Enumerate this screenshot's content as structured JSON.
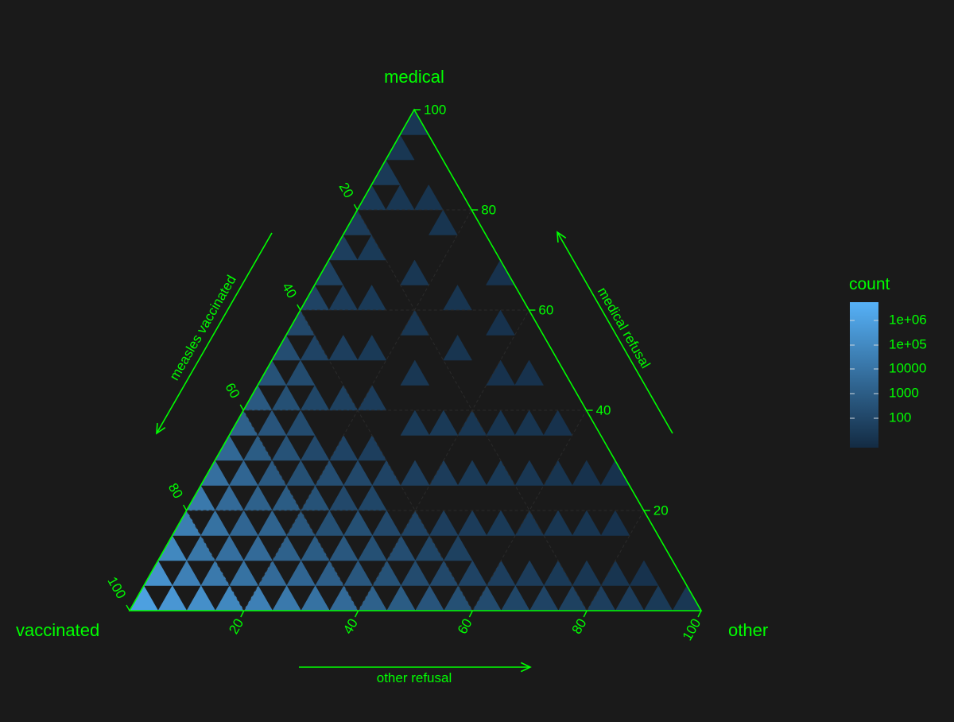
{
  "chart_data": {
    "type": "ternary-heatmap",
    "vertices": {
      "top": "medical",
      "left": "vaccinated",
      "right": "other"
    },
    "axes": [
      {
        "key": "medical",
        "title": "medical refusal",
        "ticks": [
          "20",
          "40",
          "60",
          "80",
          "100"
        ]
      },
      {
        "key": "vaccinated",
        "title": "measles vaccinated",
        "ticks": [
          "20",
          "40",
          "60",
          "80",
          "100"
        ]
      },
      {
        "key": "other",
        "title": "other refusal",
        "ticks": [
          "20",
          "40",
          "60",
          "80",
          "100"
        ]
      }
    ],
    "legend": {
      "title": "count",
      "labels": [
        "1e+06",
        "1e+05",
        "10000",
        "1000",
        "100"
      ],
      "scale": "log10",
      "color_low": "#132b43",
      "color_high": "#56b1f7"
    },
    "cell_size": 5,
    "cells": [
      [
        0,
        0,
        5.8
      ],
      [
        0,
        1,
        5.2
      ],
      [
        1,
        0,
        5.4
      ],
      [
        0,
        2,
        4.8
      ],
      [
        1,
        1,
        4.5
      ],
      [
        2,
        0,
        5.1
      ],
      [
        0,
        3,
        4.4
      ],
      [
        1,
        2,
        4.1
      ],
      [
        2,
        1,
        4.2
      ],
      [
        3,
        0,
        4.8
      ],
      [
        0,
        4,
        4.2
      ],
      [
        1,
        3,
        3.9
      ],
      [
        2,
        2,
        3.8
      ],
      [
        3,
        1,
        3.9
      ],
      [
        4,
        0,
        4.5
      ],
      [
        0,
        5,
        3.8
      ],
      [
        1,
        4,
        3.6
      ],
      [
        2,
        3,
        3.4
      ],
      [
        3,
        2,
        3.6
      ],
      [
        4,
        1,
        3.6
      ],
      [
        5,
        0,
        4.2
      ],
      [
        0,
        6,
        3.5
      ],
      [
        1,
        5,
        3.4
      ],
      [
        2,
        4,
        3.2
      ],
      [
        3,
        3,
        3.3
      ],
      [
        4,
        2,
        3.2
      ],
      [
        5,
        1,
        3.4
      ],
      [
        6,
        0,
        3.9
      ],
      [
        0,
        7,
        3.2
      ],
      [
        1,
        6,
        3.0
      ],
      [
        2,
        5,
        2.9
      ],
      [
        3,
        4,
        3.0
      ],
      [
        4,
        3,
        2.8
      ],
      [
        5,
        2,
        3.0
      ],
      [
        6,
        1,
        3.1
      ],
      [
        7,
        0,
        3.6
      ],
      [
        0,
        8,
        2.9
      ],
      [
        1,
        7,
        2.7
      ],
      [
        2,
        6,
        2.6
      ],
      [
        3,
        5,
        2.5
      ],
      [
        4,
        4,
        2.6
      ],
      [
        5,
        3,
        2.5
      ],
      [
        6,
        2,
        2.8
      ],
      [
        7,
        1,
        2.8
      ],
      [
        8,
        0,
        3.2
      ],
      [
        0,
        9,
        2.6
      ],
      [
        1,
        8,
        2.5
      ],
      [
        2,
        7,
        2.3
      ],
      [
        3,
        6,
        2.2
      ],
      [
        4,
        5,
        2.4
      ],
      [
        5,
        4,
        2.2
      ],
      [
        6,
        3,
        2.5
      ],
      [
        7,
        2,
        2.5
      ],
      [
        8,
        1,
        2.6
      ],
      [
        9,
        0,
        3.0
      ],
      [
        0,
        10,
        2.4
      ],
      [
        1,
        9,
        2.3
      ],
      [
        2,
        8,
        2.1
      ],
      [
        4,
        6,
        2.0
      ],
      [
        5,
        5,
        2.2
      ],
      [
        6,
        4,
        2.1
      ],
      [
        7,
        3,
        2.2
      ],
      [
        8,
        2,
        2.4
      ],
      [
        9,
        1,
        2.3
      ],
      [
        10,
        0,
        2.7
      ],
      [
        0,
        11,
        2.2
      ],
      [
        1,
        10,
        2.0
      ],
      [
        3,
        8,
        1.9
      ],
      [
        5,
        6,
        1.8
      ],
      [
        6,
        5,
        2.0
      ],
      [
        8,
        3,
        2.0
      ],
      [
        9,
        2,
        2.1
      ],
      [
        10,
        1,
        2.2
      ],
      [
        11,
        0,
        2.5
      ],
      [
        0,
        12,
        2.0
      ],
      [
        2,
        10,
        1.8
      ],
      [
        4,
        8,
        1.7
      ],
      [
        7,
        5,
        1.8
      ],
      [
        9,
        3,
        1.8
      ],
      [
        10,
        2,
        1.9
      ],
      [
        11,
        1,
        2.0
      ],
      [
        12,
        0,
        2.3
      ],
      [
        0,
        13,
        1.9
      ],
      [
        1,
        12,
        1.7
      ],
      [
        3,
        10,
        1.6
      ],
      [
        6,
        7,
        1.6
      ],
      [
        8,
        5,
        1.7
      ],
      [
        10,
        3,
        1.7
      ],
      [
        12,
        1,
        1.8
      ],
      [
        13,
        0,
        2.1
      ],
      [
        0,
        14,
        1.8
      ],
      [
        2,
        12,
        1.6
      ],
      [
        5,
        9,
        1.5
      ],
      [
        7,
        7,
        1.6
      ],
      [
        9,
        5,
        1.6
      ],
      [
        11,
        3,
        1.6
      ],
      [
        13,
        1,
        1.7
      ],
      [
        14,
        0,
        2.0
      ],
      [
        0,
        15,
        1.7
      ],
      [
        1,
        14,
        1.6
      ],
      [
        4,
        11,
        1.5
      ],
      [
        8,
        7,
        1.5
      ],
      [
        10,
        5,
        1.6
      ],
      [
        12,
        3,
        1.5
      ],
      [
        14,
        1,
        1.6
      ],
      [
        15,
        0,
        1.9
      ],
      [
        0,
        16,
        1.6
      ],
      [
        3,
        13,
        1.5
      ],
      [
        6,
        10,
        1.4
      ],
      [
        9,
        7,
        1.4
      ],
      [
        11,
        5,
        1.5
      ],
      [
        13,
        3,
        1.5
      ],
      [
        15,
        1,
        1.5
      ],
      [
        16,
        0,
        1.8
      ],
      [
        0,
        17,
        1.6
      ],
      [
        5,
        12,
        1.4
      ],
      [
        10,
        7,
        1.4
      ],
      [
        14,
        3,
        1.4
      ],
      [
        17,
        0,
        1.7
      ],
      [
        1,
        16,
        1.5
      ],
      [
        8,
        9,
        1.3
      ],
      [
        12,
        5,
        1.4
      ],
      [
        16,
        1,
        1.4
      ],
      [
        0,
        18,
        1.5
      ],
      [
        3,
        15,
        1.4
      ],
      [
        7,
        11,
        1.3
      ],
      [
        11,
        7,
        1.3
      ],
      [
        15,
        3,
        1.3
      ],
      [
        18,
        0,
        1.6
      ],
      [
        2,
        16,
        1.4
      ],
      [
        9,
        9,
        1.3
      ],
      [
        13,
        5,
        1.3
      ],
      [
        17,
        1,
        1.3
      ],
      [
        0,
        19,
        1.5
      ],
      [
        6,
        13,
        1.3
      ],
      [
        14,
        5,
        1.3
      ],
      [
        19,
        0,
        1.5
      ]
    ]
  }
}
